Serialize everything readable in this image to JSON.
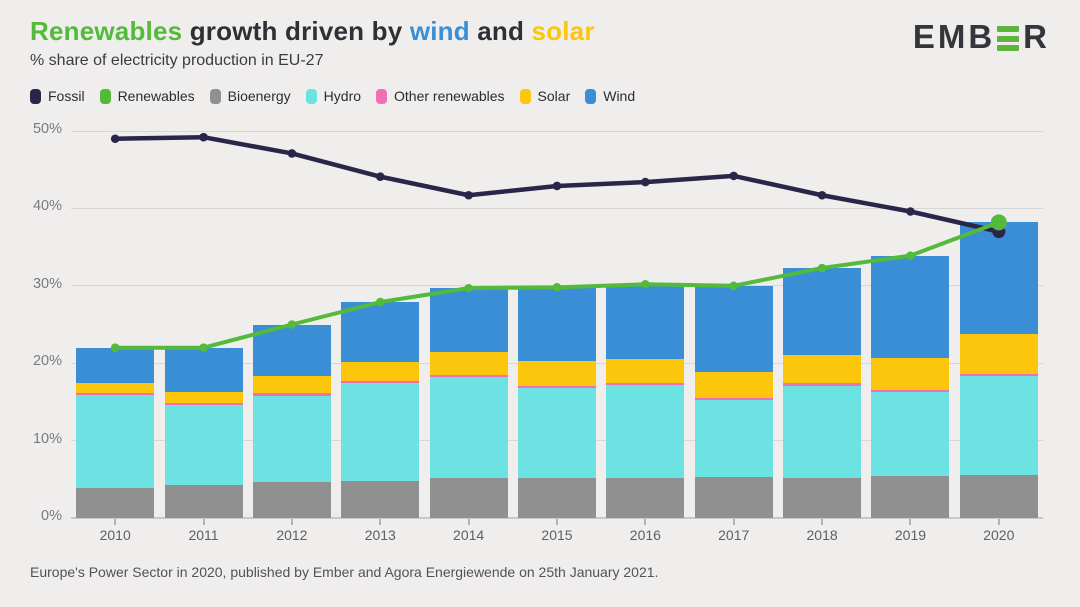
{
  "header": {
    "title_parts": [
      {
        "text": "Renewables",
        "color": "#53ba3b"
      },
      {
        "text": " growth driven by ",
        "color": "#2f2f35"
      },
      {
        "text": "wind",
        "color": "#3a8ed6"
      },
      {
        "text": " and ",
        "color": "#2f2f35"
      },
      {
        "text": "solar",
        "color": "#fcc60d"
      }
    ],
    "subtitle": "% share of electricity production in EU-27",
    "logo": {
      "left": "EMB",
      "right": "R",
      "accent_color": "#5db53b"
    }
  },
  "legend": {
    "items": [
      {
        "label": "Fossil",
        "color": "#2b2649"
      },
      {
        "label": "Renewables",
        "color": "#53ba3b"
      },
      {
        "label": "Bioenergy",
        "color": "#909090"
      },
      {
        "label": "Hydro",
        "color": "#6ce2e2"
      },
      {
        "label": "Other renewables",
        "color": "#f170b5"
      },
      {
        "label": "Solar",
        "color": "#fcc60d"
      },
      {
        "label": "Wind",
        "color": "#3a8ed6"
      }
    ]
  },
  "chart_data": {
    "type": "stacked-bar+line",
    "title": "Renewables growth driven by wind and solar",
    "subtitle": "% share of electricity production in EU-27",
    "categories": [
      "2010",
      "2011",
      "2012",
      "2013",
      "2014",
      "2015",
      "2016",
      "2017",
      "2018",
      "2019",
      "2020"
    ],
    "ylim": [
      0,
      50
    ],
    "ytick_labels": [
      "0%",
      "10%",
      "20%",
      "30%",
      "40%",
      "50%"
    ],
    "grid": "horizontal",
    "legend_position": "top",
    "unit": "% of electricity production",
    "stack_order_bottom_to_top": [
      "Bioenergy",
      "Hydro",
      "Other renewables",
      "Solar",
      "Wind"
    ],
    "series": [
      {
        "name": "Bioenergy",
        "type": "bar",
        "color": "#909090",
        "values": [
          3.9,
          4.2,
          4.6,
          4.8,
          5.2,
          5.2,
          5.2,
          5.3,
          5.2,
          5.4,
          5.5
        ]
      },
      {
        "name": "Hydro",
        "type": "bar",
        "color": "#6ce2e2",
        "values": [
          12.0,
          10.4,
          11.2,
          12.6,
          13.0,
          11.6,
          12.0,
          9.9,
          11.9,
          10.9,
          12.8
        ]
      },
      {
        "name": "Other renewables",
        "type": "bar",
        "color": "#f170b5",
        "values": [
          0.3,
          0.3,
          0.3,
          0.3,
          0.3,
          0.3,
          0.3,
          0.3,
          0.3,
          0.3,
          0.3
        ]
      },
      {
        "name": "Solar",
        "type": "bar",
        "color": "#fcc60d",
        "values": [
          1.2,
          1.4,
          2.2,
          2.5,
          3.0,
          3.2,
          3.0,
          3.3,
          3.6,
          4.1,
          5.2
        ]
      },
      {
        "name": "Wind",
        "type": "bar",
        "color": "#3a8ed6",
        "values": [
          4.6,
          5.7,
          6.7,
          7.7,
          8.2,
          9.5,
          9.7,
          11.2,
          11.3,
          13.2,
          14.4
        ]
      },
      {
        "name": "Fossil",
        "type": "line",
        "color": "#2b2649",
        "values": [
          49.0,
          49.2,
          47.1,
          44.1,
          41.7,
          42.9,
          43.4,
          44.2,
          41.7,
          39.6,
          37.0
        ]
      },
      {
        "name": "Renewables",
        "type": "line",
        "color": "#53ba3b",
        "values": [
          22.0,
          22.0,
          25.0,
          27.9,
          29.7,
          29.8,
          30.2,
          30.0,
          32.3,
          33.9,
          38.2
        ]
      }
    ]
  },
  "footer": {
    "source": "Europe's Power Sector in 2020, published by Ember and Agora Energiewende on 25th January 2021."
  }
}
